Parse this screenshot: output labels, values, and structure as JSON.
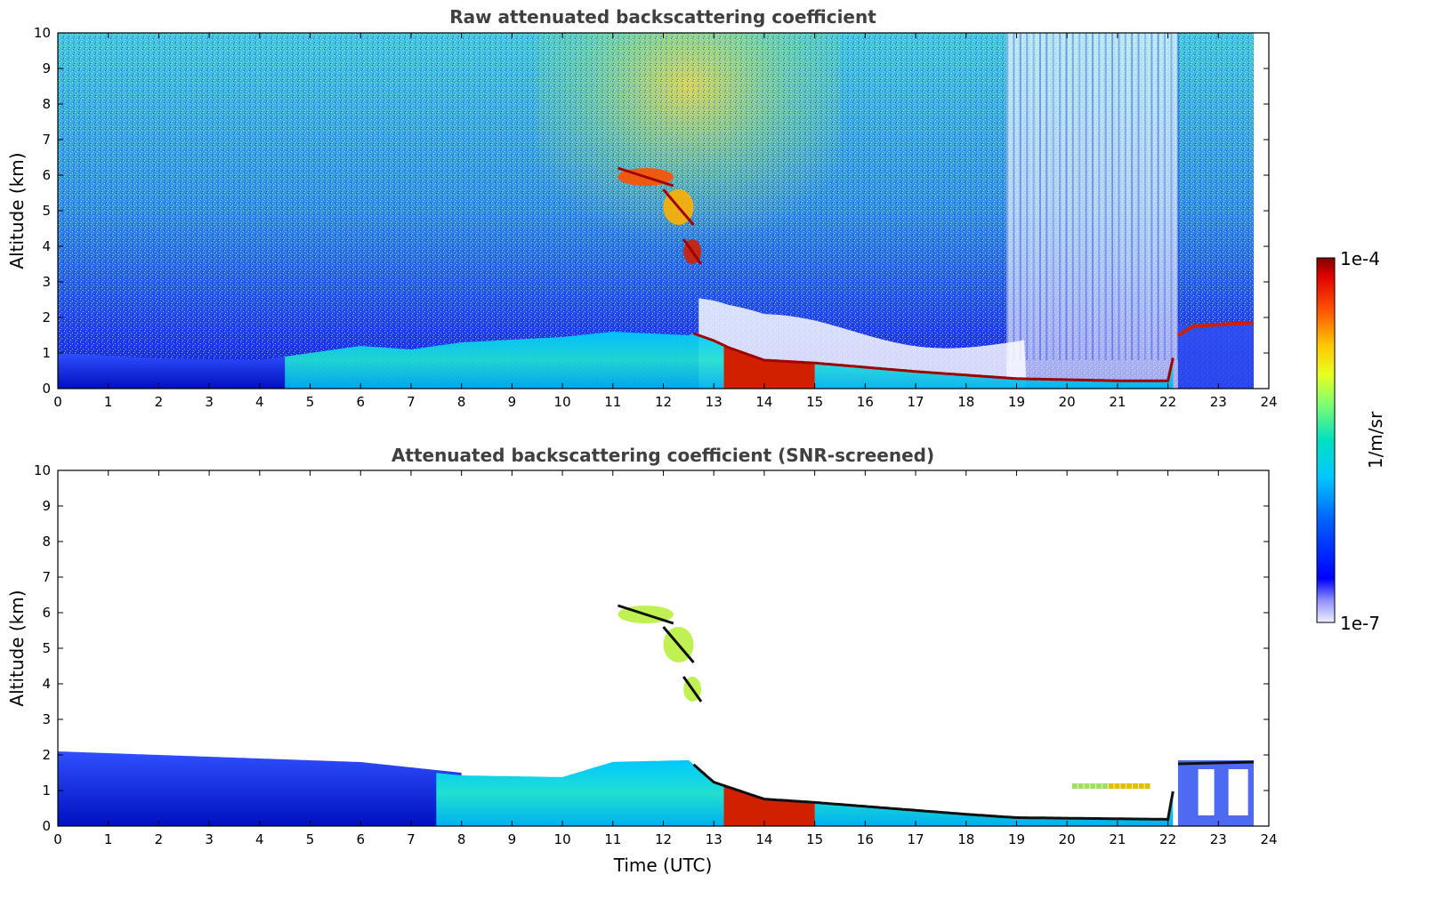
{
  "chart_data": [
    {
      "type": "heatmap",
      "title": "Raw attenuated backscattering coefficient",
      "xlabel": "",
      "ylabel": "Altitude (km)",
      "xlim": [
        0,
        24
      ],
      "ylim": [
        0,
        10
      ],
      "x_ticks": [
        "0",
        "1",
        "2",
        "3",
        "4",
        "5",
        "6",
        "7",
        "8",
        "9",
        "10",
        "11",
        "12",
        "13",
        "14",
        "15",
        "16",
        "17",
        "18",
        "19",
        "20",
        "21",
        "22",
        "23",
        "24"
      ],
      "y_ticks": [
        "0",
        "1",
        "2",
        "3",
        "4",
        "5",
        "6",
        "7",
        "8",
        "9",
        "10"
      ],
      "data_end_time": 23.7,
      "boundary_layer_top_km": {
        "x": [
          0,
          2,
          4,
          6,
          7,
          8,
          10,
          11,
          12.5,
          12.6,
          13,
          13.3,
          14,
          15,
          16,
          17,
          18,
          19,
          20,
          21,
          22,
          22.2,
          22.5,
          23,
          23.7
        ],
        "y": [
          1.0,
          0.85,
          0.8,
          1.2,
          1.1,
          1.3,
          1.45,
          1.6,
          1.5,
          1.55,
          1.35,
          1.15,
          0.8,
          0.72,
          0.6,
          0.48,
          0.38,
          0.28,
          0.25,
          0.22,
          0.22,
          1.5,
          1.75,
          1.8,
          1.85
        ]
      },
      "features": [
        {
          "name": "cirrus",
          "time": [
            11.1,
            12.8
          ],
          "altitude_km": [
            3.5,
            6.2
          ],
          "intensity": "high"
        },
        {
          "name": "strong low-level layer",
          "time": [
            13.2,
            15.0
          ],
          "altitude_km": [
            0.1,
            1.1
          ],
          "intensity": "high"
        },
        {
          "name": "low-signal columns",
          "time": [
            18.8,
            22.2
          ],
          "altitude_km": [
            0.5,
            10
          ],
          "intensity": "low"
        }
      ]
    },
    {
      "type": "heatmap",
      "title": "Attenuated backscattering coefficient (SNR-screened)",
      "xlabel": "Time (UTC)",
      "ylabel": "Altitude (km)",
      "xlim": [
        0,
        24
      ],
      "ylim": [
        0,
        10
      ],
      "x_ticks": [
        "0",
        "1",
        "2",
        "3",
        "4",
        "5",
        "6",
        "7",
        "8",
        "9",
        "10",
        "11",
        "12",
        "13",
        "14",
        "15",
        "16",
        "17",
        "18",
        "19",
        "20",
        "21",
        "22",
        "23",
        "24"
      ],
      "y_ticks": [
        "0",
        "1",
        "2",
        "3",
        "4",
        "5",
        "6",
        "7",
        "8",
        "9",
        "10"
      ],
      "data_end_time": 23.7,
      "screened_top_km": {
        "x": [
          0,
          4,
          6,
          8,
          10,
          11,
          12.5,
          13,
          14,
          15,
          18,
          19,
          22,
          22.2,
          23.7
        ],
        "y": [
          2.1,
          1.9,
          1.8,
          1.5,
          1.45,
          1.9,
          1.95,
          1.3,
          0.8,
          0.7,
          0.35,
          0.25,
          0.2,
          1.85,
          1.9
        ]
      },
      "features": [
        {
          "name": "cirrus",
          "time": [
            11.1,
            12.8
          ],
          "altitude_km": [
            3.5,
            6.2
          ],
          "intensity": "high"
        },
        {
          "name": "strong low-level layer",
          "time": [
            13.2,
            15.0
          ],
          "altitude_km": [
            0.1,
            1.1
          ],
          "intensity": "high"
        }
      ]
    }
  ],
  "colorbar": {
    "max_label": "1e-4",
    "min_label": "1e-7",
    "label": "1/m/sr",
    "colormap": [
      "#e8e8ff",
      "#8080ff",
      "#0000ff",
      "#0066ff",
      "#00ccff",
      "#00e8c0",
      "#80ff80",
      "#e0ff20",
      "#ffd000",
      "#ff7000",
      "#ff0000",
      "#900000"
    ]
  }
}
